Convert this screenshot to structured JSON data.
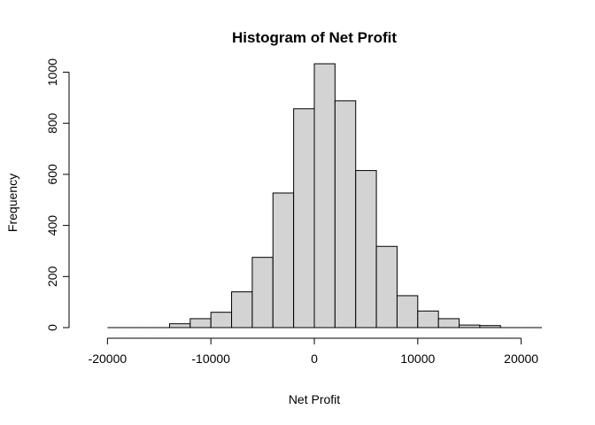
{
  "chart_data": {
    "type": "bar",
    "title": "Histogram of Net Profit",
    "xlabel": "Net Profit",
    "ylabel": "Frequency",
    "xlim": [
      -22000,
      22000
    ],
    "ylim": [
      0,
      1040
    ],
    "x_ticks": [
      -20000,
      -10000,
      0,
      10000,
      20000
    ],
    "y_ticks": [
      0,
      200,
      400,
      600,
      800,
      1000
    ],
    "bin_width": 2000,
    "bins": [
      {
        "start": -20000,
        "end": -18000,
        "value": 0
      },
      {
        "start": -18000,
        "end": -16000,
        "value": 0
      },
      {
        "start": -16000,
        "end": -14000,
        "value": 0
      },
      {
        "start": -14000,
        "end": -12000,
        "value": 15
      },
      {
        "start": -12000,
        "end": -10000,
        "value": 35
      },
      {
        "start": -10000,
        "end": -8000,
        "value": 60
      },
      {
        "start": -8000,
        "end": -6000,
        "value": 140
      },
      {
        "start": -6000,
        "end": -4000,
        "value": 275
      },
      {
        "start": -4000,
        "end": -2000,
        "value": 527
      },
      {
        "start": -2000,
        "end": 0,
        "value": 857
      },
      {
        "start": 0,
        "end": 2000,
        "value": 1033
      },
      {
        "start": 2000,
        "end": 4000,
        "value": 888
      },
      {
        "start": 4000,
        "end": 6000,
        "value": 615
      },
      {
        "start": 6000,
        "end": 8000,
        "value": 318
      },
      {
        "start": 8000,
        "end": 10000,
        "value": 125
      },
      {
        "start": 10000,
        "end": 12000,
        "value": 65
      },
      {
        "start": 12000,
        "end": 14000,
        "value": 35
      },
      {
        "start": 14000,
        "end": 16000,
        "value": 10
      },
      {
        "start": 16000,
        "end": 18000,
        "value": 8
      },
      {
        "start": 18000,
        "end": 20000,
        "value": 0
      },
      {
        "start": 20000,
        "end": 22000,
        "value": 0
      }
    ],
    "grid": false,
    "bar_color": "#d3d3d3",
    "edge_color": "#000000"
  }
}
